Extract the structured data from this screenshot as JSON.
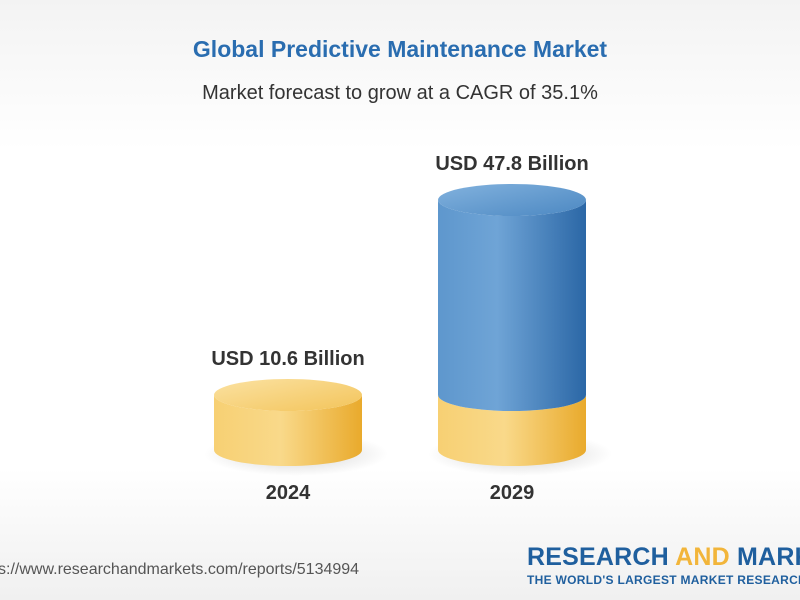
{
  "title": "Global Predictive Maintenance Market",
  "subtitle": "Market forecast to grow at a CAGR of 35.1%",
  "source_url": "s://www.researchandmarkets.com/reports/5134994",
  "brand": {
    "name_part1": "RESEARCH ",
    "name_accent": "AND",
    "name_part2": " MARKET",
    "tagline": "THE WORLD'S LARGEST MARKET RESEARCH ST"
  },
  "colors": {
    "title": "#2a6db0",
    "gold": "#f6c85f",
    "blue": "#4a86be"
  },
  "chart_data": {
    "type": "bar",
    "title": "Global Predictive Maintenance Market",
    "subtitle": "Market forecast to grow at a CAGR of 35.1%",
    "categories": [
      "2024",
      "2029"
    ],
    "values": [
      10.6,
      47.8
    ],
    "value_labels": [
      "USD 10.6 Billion",
      "USD 47.8 Billion"
    ],
    "unit": "USD Billion",
    "grid": false,
    "legend": "none"
  }
}
